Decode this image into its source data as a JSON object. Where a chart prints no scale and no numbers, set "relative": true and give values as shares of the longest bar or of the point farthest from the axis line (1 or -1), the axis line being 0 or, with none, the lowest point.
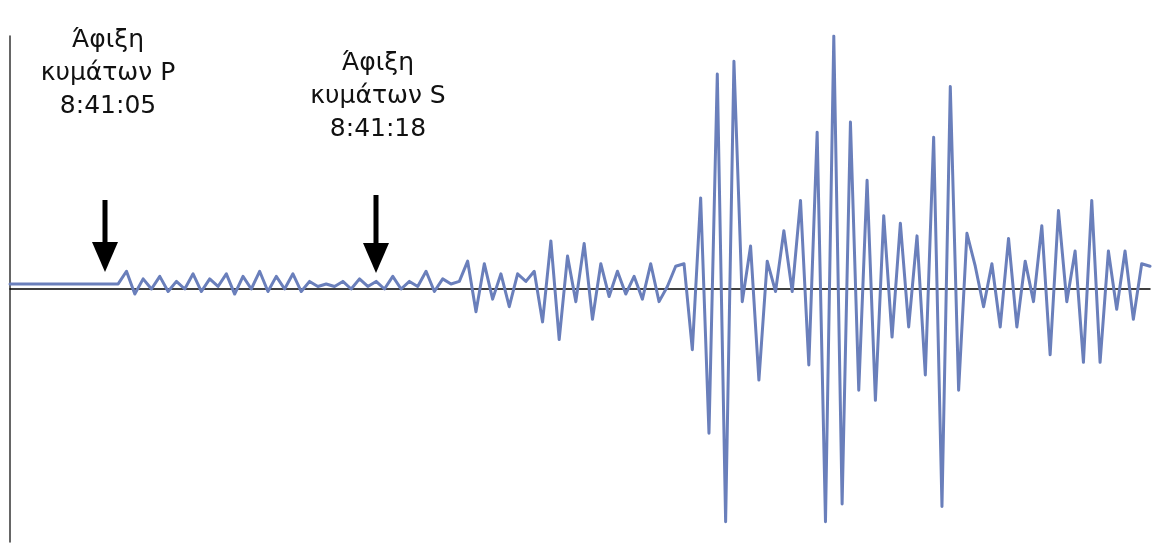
{
  "chart_data": {
    "type": "line",
    "relative": true,
    "color": "#6a7fbb",
    "line_style": "solid",
    "grid": false,
    "annotations": [
      "Άφιξη\nκυμάτων P\n8:41:05",
      "Άφιξη\nκυμάτων S\n8:41:18"
    ],
    "categories": [
      null,
      null,
      null,
      null,
      null,
      null,
      null,
      null,
      null,
      null,
      null,
      null,
      null,
      null,
      null,
      null,
      null,
      null,
      null,
      null,
      null,
      null,
      null,
      null,
      null,
      null,
      null,
      null,
      null,
      null,
      null,
      null,
      null,
      null,
      null,
      null,
      null,
      null,
      null,
      null,
      null,
      null,
      null,
      null,
      null,
      null,
      null,
      null,
      null,
      null,
      null,
      null,
      null,
      null,
      null,
      null,
      null,
      null,
      null,
      null,
      null,
      null,
      null,
      null,
      null,
      null,
      null,
      null,
      null,
      null,
      null,
      null,
      null,
      null,
      null,
      null,
      null,
      null,
      null,
      null,
      null,
      null,
      null,
      null,
      null,
      null,
      null,
      null,
      null,
      null,
      null,
      null,
      null,
      null,
      null,
      null,
      null,
      null,
      null,
      null,
      null,
      null,
      null,
      null,
      null,
      null,
      null,
      null,
      null,
      null,
      null,
      null,
      null,
      null,
      null,
      null,
      null,
      null,
      null,
      null,
      null,
      null,
      null,
      null,
      null,
      null,
      null,
      null,
      null,
      null,
      null,
      null,
      null,
      null,
      null,
      null,
      null,
      null
    ],
    "values": [
      0.02,
      0.02,
      0.02,
      0.02,
      0.02,
      0.02,
      0.02,
      0.02,
      0.02,
      0.02,
      0.02,
      0.02,
      0.02,
      0.02,
      0.07,
      -0.02,
      0.04,
      0.0,
      0.05,
      -0.01,
      0.03,
      0.0,
      0.06,
      -0.01,
      0.04,
      0.01,
      0.06,
      -0.02,
      0.05,
      0.0,
      0.07,
      -0.01,
      0.05,
      0.0,
      0.06,
      -0.01,
      0.03,
      0.01,
      0.02,
      0.01,
      0.03,
      0.0,
      0.04,
      0.01,
      0.03,
      0.0,
      0.05,
      0.0,
      0.03,
      0.01,
      0.07,
      -0.01,
      0.04,
      0.02,
      0.03,
      0.11,
      -0.09,
      0.1,
      -0.04,
      0.06,
      -0.07,
      0.06,
      0.03,
      0.07,
      -0.13,
      0.19,
      -0.2,
      0.13,
      -0.05,
      0.18,
      -0.12,
      0.1,
      -0.03,
      0.07,
      -0.02,
      0.05,
      -0.04,
      0.1,
      -0.05,
      0.01,
      0.09,
      0.1,
      -0.24,
      0.36,
      -0.57,
      0.85,
      -0.92,
      0.9,
      -0.05,
      0.17,
      -0.36,
      0.11,
      -0.01,
      0.23,
      -0.01,
      0.35,
      -0.3,
      0.62,
      -0.92,
      1.0,
      -0.85,
      0.66,
      -0.4,
      0.43,
      -0.44,
      0.29,
      -0.19,
      0.26,
      -0.15,
      0.21,
      -0.34,
      0.6,
      -0.86,
      0.8,
      -0.4,
      0.22,
      0.09,
      -0.07,
      0.1,
      -0.15,
      0.2,
      -0.15,
      0.11,
      -0.05,
      0.25,
      -0.26,
      0.31,
      -0.05,
      0.15,
      -0.29,
      0.35,
      -0.29,
      0.15,
      -0.08,
      0.15,
      -0.12,
      0.1,
      0.09
    ]
  }
}
